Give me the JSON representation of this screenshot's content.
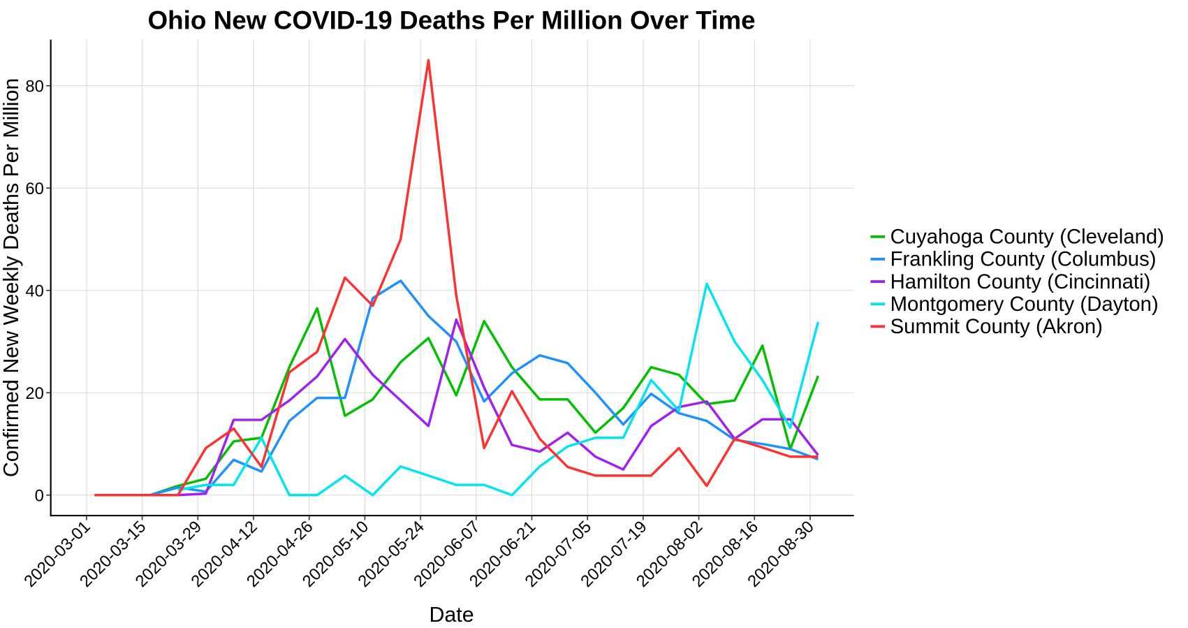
{
  "chart_data": {
    "type": "line",
    "title": "Ohio New COVID-19 Deaths Per Million Over Time",
    "xlabel": "Date",
    "ylabel": "Confirmed New Weekly Deaths Per Million",
    "ylim": [
      -4,
      89
    ],
    "yticks": [
      0,
      20,
      40,
      60,
      80
    ],
    "xticks": [
      "2020-03-01",
      "2020-03-15",
      "2020-03-29",
      "2020-04-12",
      "2020-04-26",
      "2020-05-10",
      "2020-05-24",
      "2020-06-07",
      "2020-06-21",
      "2020-07-05",
      "2020-07-19",
      "2020-08-02",
      "2020-08-16",
      "2020-08-30"
    ],
    "xlim": [
      "2020-02-21",
      "2020-09-10"
    ],
    "grid": true,
    "legend_position": "right",
    "x": [
      "2020-03-03",
      "2020-03-10",
      "2020-03-17",
      "2020-03-24",
      "2020-03-31",
      "2020-04-07",
      "2020-04-14",
      "2020-04-21",
      "2020-04-28",
      "2020-05-05",
      "2020-05-12",
      "2020-05-19",
      "2020-05-26",
      "2020-06-02",
      "2020-06-09",
      "2020-06-16",
      "2020-06-23",
      "2020-06-30",
      "2020-07-07",
      "2020-07-14",
      "2020-07-21",
      "2020-07-28",
      "2020-08-04",
      "2020-08-11",
      "2020-08-18",
      "2020-08-25",
      "2020-09-01"
    ],
    "series": [
      {
        "name": "Cuyahoga County (Cleveland)",
        "color": "#00c000",
        "values": [
          null,
          null,
          0,
          1.8,
          3.2,
          10.5,
          11.2,
          25,
          36.5,
          15.5,
          18.7,
          26,
          30.7,
          19.5,
          34,
          25,
          18.7,
          18.7,
          12.2,
          17,
          25,
          23.5,
          17.8,
          18.5,
          29.2,
          9,
          23.3
        ]
      },
      {
        "name": "Frankling County (Columbus)",
        "color": "#1e90ff",
        "values": [
          null,
          0,
          0,
          1.5,
          0.7,
          6.9,
          4.6,
          14.5,
          19,
          19,
          38.5,
          41.9,
          35,
          30,
          18.3,
          23.8,
          27.3,
          25.8,
          20,
          13.8,
          19.8,
          16,
          14.5,
          10.8,
          10,
          9,
          7
        ]
      },
      {
        "name": "Hamilton County (Cincinnati)",
        "color": "#a020f0",
        "values": [
          null,
          null,
          null,
          0,
          0.3,
          14.7,
          14.7,
          18.5,
          23.2,
          30.5,
          23.5,
          18.5,
          13.5,
          34.3,
          21,
          9.8,
          8.5,
          12.2,
          7.5,
          5,
          13.5,
          17.2,
          18.3,
          11,
          14.8,
          14.8,
          7.8
        ]
      },
      {
        "name": "Montgomery County (Dayton)",
        "color": "#00e5ee",
        "values": [
          null,
          null,
          null,
          1,
          2,
          2,
          11.2,
          0,
          0,
          3.8,
          0,
          5.6,
          3.8,
          2,
          2,
          0,
          5.6,
          9.5,
          11.2,
          11.2,
          22.5,
          16.5,
          41.3,
          30,
          22.5,
          13.2,
          33.8
        ]
      },
      {
        "name": "Summit County (Akron)",
        "color": "#ff3030",
        "values": [
          0,
          0,
          0,
          0,
          9.2,
          13,
          5.5,
          24,
          28,
          42.5,
          37,
          50,
          85,
          39,
          9.2,
          20.3,
          11,
          5.5,
          3.8,
          3.8,
          3.8,
          9.2,
          1.8,
          11,
          9.3,
          7.5,
          7.5
        ]
      }
    ]
  }
}
